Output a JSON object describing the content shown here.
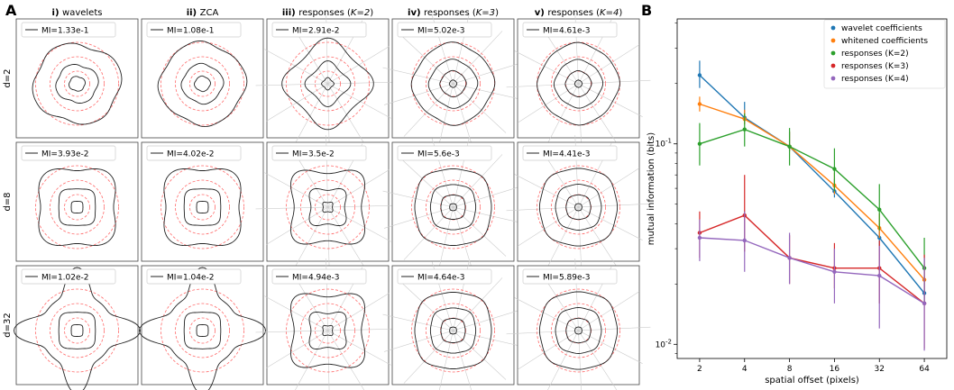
{
  "panel_a_letter": "A",
  "panel_b_letter": "B",
  "chart_data": [
    {
      "type": "contour-grid",
      "panel": "A",
      "column_titles": [
        {
          "numeral": "i)",
          "text": "wavelets",
          "k": ""
        },
        {
          "numeral": "ii)",
          "text": "ZCA",
          "k": ""
        },
        {
          "numeral": "iii)",
          "text": "responses (",
          "k": "K=2"
        },
        {
          "numeral": "iv)",
          "text": "responses (",
          "k": "K=3"
        },
        {
          "numeral": "v)",
          "text": "responses (",
          "k": "K=4"
        }
      ],
      "row_labels": [
        "d=2",
        "d=8",
        "d=32"
      ],
      "legend_line_label_prefix": "MI=",
      "mi_values": [
        [
          "1.33e-1",
          "1.08e-1",
          "2.91e-2",
          "5.02e-3",
          "4.61e-3"
        ],
        [
          "3.93e-2",
          "4.02e-2",
          "3.5e-2",
          "5.6e-3",
          "4.41e-3"
        ],
        [
          "1.02e-2",
          "1.04e-2",
          "4.94e-3",
          "4.64e-3",
          "5.89e-3"
        ]
      ],
      "colors": {
        "contour": "#222222",
        "reference_circle": "#ff6b6b",
        "radial_lines": "#cccccc"
      }
    },
    {
      "type": "line",
      "panel": "B",
      "xlabel": "spatial offset (pixels)",
      "ylabel": "mutual information (bits)",
      "x": [
        2,
        4,
        8,
        16,
        32,
        64
      ],
      "x_scale": "log2",
      "y_scale": "log",
      "ylim": [
        0.0085,
        0.42
      ],
      "y_ticks": [
        0.01,
        0.1
      ],
      "y_tick_labels": [
        {
          "base": "10",
          "exp": "-2"
        },
        {
          "base": "10",
          "exp": "-1"
        }
      ],
      "legend_position": "top-right",
      "series": [
        {
          "name": "wavelet coefficients",
          "color": "#1f77b4",
          "values": [
            0.22,
            0.135,
            0.097,
            0.058,
            0.034,
            0.018
          ],
          "err_low": [
            0.19,
            0.125,
            0.092,
            0.054,
            0.031,
            0.016
          ],
          "err_high": [
            0.26,
            0.162,
            0.115,
            0.067,
            0.04,
            0.022
          ]
        },
        {
          "name": "whitened coefficients",
          "color": "#ff7f0e",
          "values": [
            0.158,
            0.133,
            0.097,
            0.062,
            0.038,
            0.021
          ],
          "err_low": [
            0.145,
            0.125,
            0.092,
            0.056,
            0.034,
            0.018
          ],
          "err_high": [
            0.172,
            0.148,
            0.115,
            0.072,
            0.045,
            0.025
          ]
        },
        {
          "name": "responses (K=2)",
          "color": "#2ca02c",
          "values": [
            0.1,
            0.118,
            0.097,
            0.075,
            0.047,
            0.024
          ],
          "err_low": [
            0.078,
            0.097,
            0.078,
            0.058,
            0.037,
            0.016
          ],
          "err_high": [
            0.127,
            0.142,
            0.12,
            0.095,
            0.063,
            0.034
          ]
        },
        {
          "name": "responses (K=3)",
          "color": "#d62728",
          "values": [
            0.036,
            0.044,
            0.027,
            0.024,
            0.024,
            0.016
          ],
          "err_low": [
            0.027,
            0.029,
            0.02,
            0.019,
            0.016,
            0.0095
          ],
          "err_high": [
            0.046,
            0.07,
            0.035,
            0.032,
            0.033,
            0.028
          ]
        },
        {
          "name": "responses (K=4)",
          "color": "#9467bd",
          "values": [
            0.034,
            0.033,
            0.027,
            0.023,
            0.022,
            0.016
          ],
          "err_low": [
            0.026,
            0.023,
            0.02,
            0.016,
            0.012,
            0.0093
          ],
          "err_high": [
            0.042,
            0.046,
            0.036,
            0.03,
            0.031,
            0.027
          ]
        }
      ]
    }
  ]
}
